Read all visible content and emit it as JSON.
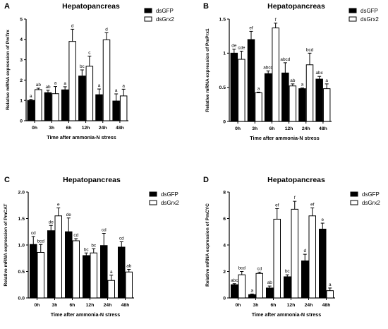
{
  "chart_data": [
    {
      "panel": "A",
      "type": "bar",
      "title": "Hepatopancreas",
      "xlabel": "Time after ammonia-N stress",
      "ylabel": "Relative mRNA expression of PmTrx",
      "categories": [
        "0h",
        "3h",
        "6h",
        "12h",
        "24h",
        "48h"
      ],
      "ylim": [
        0,
        5
      ],
      "yticks": [
        "0",
        "1",
        "2",
        "3",
        "4",
        "5"
      ],
      "legend_position": "top-right",
      "series": [
        {
          "name": "dsGFP",
          "color": "#000000",
          "values": [
            1.0,
            1.38,
            1.52,
            2.2,
            1.28,
            0.97
          ],
          "errors": [
            0.05,
            0.12,
            0.15,
            0.3,
            0.28,
            0.35
          ],
          "labels": [
            "a",
            "ab",
            "a",
            "bc",
            "a",
            "a"
          ]
        },
        {
          "name": "dsGrx2",
          "color": "#ffffff",
          "values": [
            1.53,
            1.33,
            3.9,
            2.68,
            3.98,
            1.22
          ],
          "errors": [
            0.07,
            0.35,
            0.6,
            0.5,
            0.35,
            0.33
          ],
          "labels": [
            "ab",
            "a",
            "d",
            "c",
            "d",
            "a"
          ]
        }
      ]
    },
    {
      "panel": "B",
      "type": "bar",
      "title": "Hepatopancreas",
      "xlabel": "Time after ammonia-N stress",
      "ylabel": "Relative mRNA expression of PmPrx1",
      "categories": [
        "0h",
        "3h",
        "6h",
        "12h",
        "24h",
        "48h"
      ],
      "ylim": [
        0,
        1.5
      ],
      "yticks": [
        "0",
        "0.5",
        "1",
        "1.5"
      ],
      "legend_position": "top-right",
      "series": [
        {
          "name": "dsGFP",
          "color": "#000000",
          "values": [
            1.0,
            1.2,
            0.7,
            0.71,
            0.48,
            0.62
          ],
          "errors": [
            0.06,
            0.12,
            0.04,
            0.15,
            0.01,
            0.04
          ],
          "labels": [
            "de",
            "ef",
            "abcd",
            "abcd",
            "a",
            "abc"
          ]
        },
        {
          "name": "dsGrx2",
          "color": "#ffffff",
          "values": [
            0.91,
            0.42,
            1.37,
            0.52,
            0.83,
            0.48
          ],
          "errors": [
            0.12,
            0.01,
            0.07,
            0.03,
            0.17,
            0.07
          ],
          "labels": [
            "cde",
            "a",
            "f",
            "ab",
            "bcd",
            "a"
          ]
        }
      ]
    },
    {
      "panel": "C",
      "type": "bar",
      "title": "Hepatopancreas",
      "xlabel": "Time after ammonia-N stress",
      "ylabel": "Relative mRNA expression of PmCAT",
      "categories": [
        "0h",
        "3h",
        "6h",
        "12h",
        "24h",
        "48h"
      ],
      "ylim": [
        0,
        2.0
      ],
      "yticks": [
        "0.0",
        "0.5",
        "1.0",
        "1.5",
        "2.0"
      ],
      "legend_position": "top-right",
      "series": [
        {
          "name": "dsGFP",
          "color": "#000000",
          "values": [
            1.01,
            1.27,
            1.25,
            0.8,
            0.99,
            0.96
          ],
          "errors": [
            0.15,
            0.1,
            0.26,
            0.05,
            0.23,
            0.1
          ],
          "labels": [
            "cd",
            "de",
            "de",
            "bc",
            "cd",
            "cd"
          ]
        },
        {
          "name": "dsGrx2",
          "color": "#ffffff",
          "values": [
            0.86,
            1.55,
            1.08,
            0.85,
            0.33,
            0.49
          ],
          "errors": [
            0.15,
            0.15,
            0.04,
            0.08,
            0.1,
            0.05
          ],
          "labels": [
            "bcd",
            "e",
            "cd",
            "bc",
            "a",
            "ab"
          ]
        }
      ]
    },
    {
      "panel": "D",
      "type": "bar",
      "title": "Hepatopancreas",
      "xlabel": "Time after ammonia-N stress",
      "ylabel": "Relative mRNA expression of PmCYC",
      "categories": [
        "0h",
        "3h",
        "6h",
        "12h",
        "24h",
        "48h"
      ],
      "ylim": [
        0,
        8
      ],
      "yticks": [
        "0",
        "2",
        "4",
        "6",
        "8"
      ],
      "legend_position": "top-right",
      "series": [
        {
          "name": "dsGFP",
          "color": "#000000",
          "values": [
            1.0,
            0.25,
            0.75,
            1.6,
            2.8,
            5.2
          ],
          "errors": [
            0.08,
            0.05,
            0.15,
            0.15,
            0.5,
            0.45
          ],
          "labels": [
            "abc",
            "a",
            "ab",
            "bc",
            "d",
            "e"
          ]
        },
        {
          "name": "dsGrx2",
          "color": "#ffffff",
          "values": [
            1.75,
            1.85,
            5.95,
            6.7,
            6.2,
            0.55
          ],
          "errors": [
            0.25,
            0.1,
            0.8,
            0.6,
            0.6,
            0.2
          ],
          "labels": [
            "bcd",
            "cd",
            "ef",
            "f",
            "ef",
            "a"
          ]
        }
      ]
    }
  ]
}
